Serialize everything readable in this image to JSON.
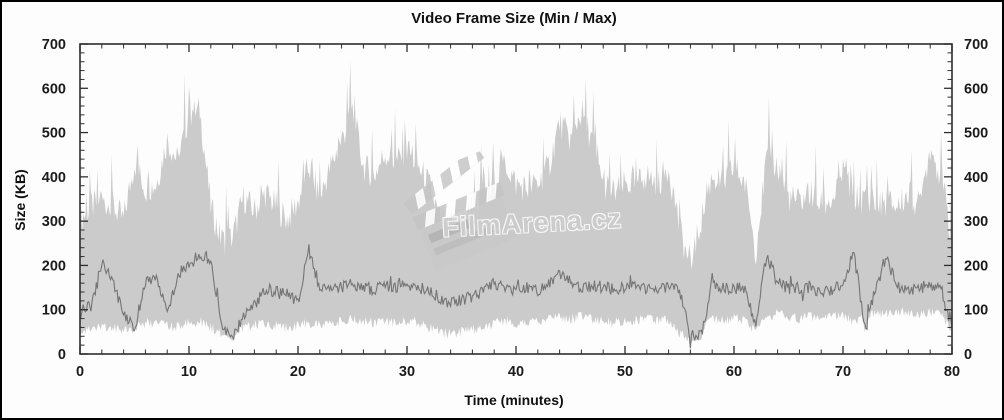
{
  "window": {
    "background": "#fdfdfd",
    "border_color": "#000000"
  },
  "watermark": {
    "text": "FilmArena.cz",
    "icon": "clapperboard-icon",
    "color": "#cdcdcd"
  },
  "chart_data": {
    "type": "area",
    "title": "Video Frame Size (Min / Max)",
    "xlabel": "Time (minutes)",
    "ylabel": "Size (KB)",
    "xlim": [
      0,
      80
    ],
    "ylim": [
      0,
      700
    ],
    "x_major_ticks": [
      0,
      10,
      20,
      30,
      40,
      50,
      60,
      70,
      80
    ],
    "x_minor_step": 2,
    "y_major_ticks": [
      0,
      100,
      200,
      300,
      400,
      500,
      600,
      700
    ],
    "y_minor_step": 20,
    "mirrored_right_axis": true,
    "grid": false,
    "legend": "none",
    "colors": {
      "band_fill": "#cbcbcb",
      "line": "#757575",
      "axis": "#2e2e2e",
      "text": "#1b1b1b"
    },
    "x": [
      0,
      1,
      2,
      3,
      4,
      5,
      6,
      7,
      8,
      9,
      10,
      11,
      12,
      13,
      14,
      15,
      16,
      17,
      18,
      19,
      20,
      21,
      22,
      23,
      24,
      25,
      26,
      27,
      28,
      29,
      30,
      31,
      32,
      33,
      34,
      35,
      36,
      37,
      38,
      39,
      40,
      41,
      42,
      43,
      44,
      45,
      46,
      47,
      48,
      49,
      50,
      51,
      52,
      53,
      54,
      55,
      56,
      57,
      58,
      59,
      60,
      61,
      62,
      63,
      64,
      65,
      66,
      67,
      68,
      69,
      70,
      71,
      72,
      73,
      74,
      75,
      76,
      77,
      78,
      79,
      80
    ],
    "series": [
      {
        "name": "max",
        "role": "band_top",
        "values": [
          300,
          330,
          340,
          330,
          300,
          430,
          370,
          380,
          480,
          430,
          540,
          545,
          330,
          250,
          260,
          350,
          320,
          360,
          330,
          300,
          340,
          420,
          350,
          420,
          480,
          545,
          420,
          400,
          450,
          430,
          460,
          420,
          380,
          300,
          280,
          300,
          320,
          330,
          380,
          430,
          380,
          370,
          380,
          420,
          520,
          480,
          545,
          480,
          380,
          360,
          380,
          380,
          400,
          380,
          420,
          280,
          190,
          300,
          400,
          380,
          420,
          380,
          230,
          440,
          420,
          350,
          340,
          360,
          330,
          340,
          410,
          350,
          340,
          330,
          340,
          330,
          360,
          330,
          460,
          400,
          250
        ]
      },
      {
        "name": "min",
        "role": "band_bottom",
        "values": [
          55,
          60,
          65,
          60,
          55,
          60,
          70,
          70,
          65,
          60,
          70,
          75,
          60,
          45,
          50,
          60,
          65,
          70,
          65,
          60,
          65,
          70,
          65,
          70,
          75,
          80,
          75,
          70,
          75,
          70,
          75,
          70,
          60,
          50,
          45,
          50,
          55,
          60,
          70,
          75,
          70,
          70,
          75,
          80,
          85,
          80,
          85,
          80,
          75,
          70,
          75,
          75,
          80,
          75,
          80,
          45,
          35,
          60,
          80,
          75,
          80,
          75,
          50,
          85,
          90,
          85,
          80,
          85,
          80,
          85,
          90,
          70,
          85,
          90,
          90,
          90,
          95,
          90,
          95,
          90,
          50
        ]
      },
      {
        "name": "avg",
        "role": "line",
        "values": [
          95,
          110,
          205,
          165,
          90,
          58,
          165,
          175,
          95,
          180,
          200,
          225,
          215,
          60,
          40,
          85,
          110,
          150,
          140,
          135,
          115,
          235,
          150,
          140,
          150,
          160,
          150,
          145,
          155,
          150,
          160,
          150,
          148,
          125,
          115,
          120,
          130,
          140,
          160,
          150,
          145,
          150,
          145,
          155,
          185,
          165,
          150,
          155,
          150,
          145,
          150,
          155,
          150,
          145,
          150,
          140,
          40,
          42,
          160,
          150,
          145,
          150,
          65,
          225,
          160,
          150,
          145,
          150,
          140,
          145,
          160,
          230,
          60,
          150,
          220,
          150,
          145,
          150,
          155,
          150,
          55
        ]
      }
    ],
    "noise": {
      "band_top_jitter": 35,
      "band_top_spike": 115,
      "band_bottom_jitter": 12,
      "line_jitter": 14,
      "upsample": 10
    }
  }
}
